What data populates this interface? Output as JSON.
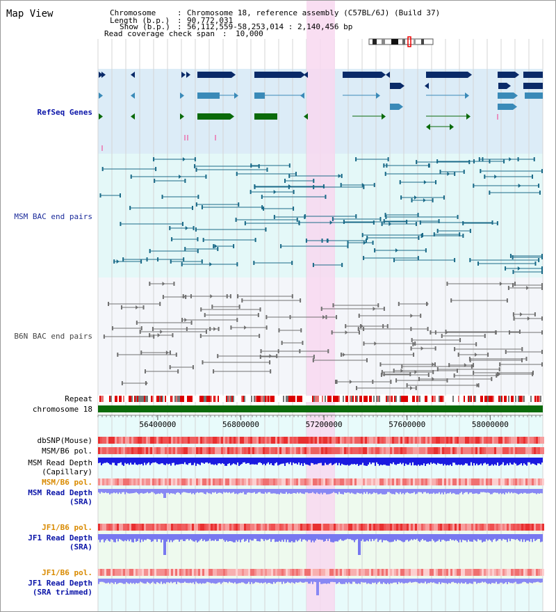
{
  "title": "Map View",
  "info": {
    "chromosome_key": "Chromosome",
    "chromosome_val": "Chromosome 18, reference assembly (C57BL/6J) (Build 37)",
    "length_key": "Length (b.p.)",
    "length_val": "90,772,031",
    "show_key": "Show (b.p.)",
    "show_val": "56,112,559-58,253,014 : 2,140,456 bp",
    "coverage_key": "Read coverage check span",
    "coverage_val": "10,000"
  },
  "axis": {
    "ticks": [
      "56400000",
      "56800000",
      "57200000",
      "57600000",
      "58000000"
    ],
    "tick_values": [
      56400000,
      56800000,
      57200000,
      57600000,
      58000000
    ],
    "range": [
      56112559,
      58253014
    ]
  },
  "colors": {
    "refseq_bg": "#dcecf7",
    "msm_bac_bg": "#e4f8f8",
    "b6n_bac_bg": "#f4f6fa",
    "highlight": "#f8d8f0",
    "gene_navy": "#0a2a68",
    "gene_teal": "#3a8ab8",
    "gene_green": "#0a6a0a",
    "bac_teal": "#1a6a88",
    "bac_grey": "#707070",
    "chrom_green": "#0a6a0a",
    "depth_blue": "#1a1ae0",
    "depth_light": "#7878f0"
  },
  "tracks": {
    "refseq": "RefSeq Genes",
    "msm_bac": "MSM BAC end pairs",
    "b6n_bac": "B6N BAC end pairs",
    "repeat": "Repeat",
    "chromosome": "chromosome 18",
    "dbsnp": "dbSNP(Mouse)",
    "msm_b6_pol": "MSM/B6 pol.",
    "msm_depth_cap_1": "MSM Read Depth",
    "msm_depth_cap_2": "(Capillary)",
    "msm_b6_pol_2": "MSM/B6 pol.",
    "msm_depth_sra_1": "MSM Read Depth",
    "msm_depth_sra_2": "(SRA)",
    "jf1_b6_pol": "JF1/B6 pol.",
    "jf1_depth_sra_1": "JF1 Read Depth",
    "jf1_depth_sra_2": "(SRA)",
    "jf1_b6_pol_2": "JF1/B6 pol.",
    "jf1_depth_trim_1": "JF1 Read Depth",
    "jf1_depth_trim_2": "(SRA trimmed)"
  }
}
